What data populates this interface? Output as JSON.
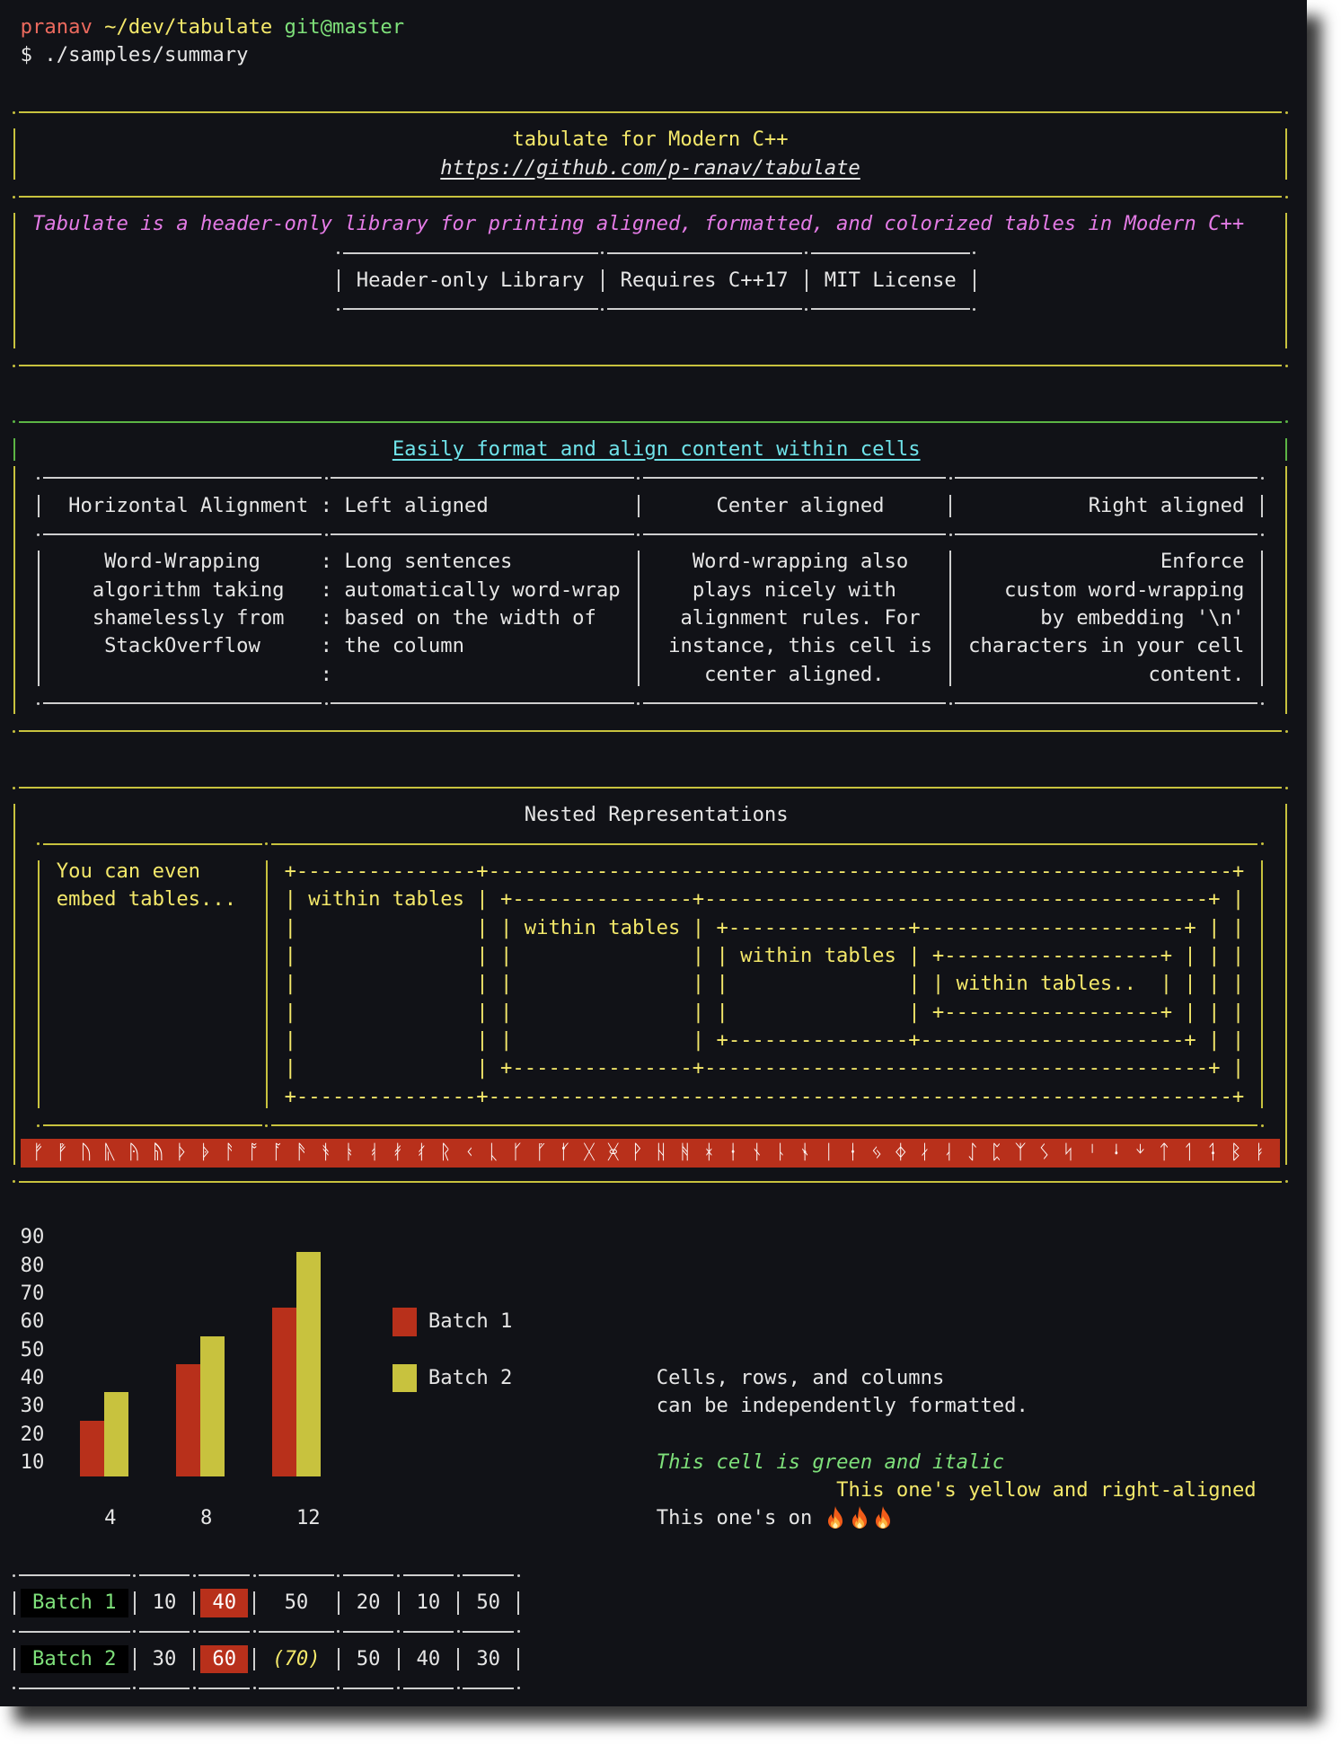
{
  "colors": {
    "background": "#111217",
    "text": "#e6e6e6",
    "border_white": "#cfcfcf",
    "border_yellow": "#c8c23e",
    "border_green": "#5cb545",
    "yellow_text": "#f4e86a",
    "green_text": "#7ee07a",
    "red": "#b8301b",
    "magenta": "#e47be6",
    "cyan": "#6fe3ea",
    "prompt_red": "#ec6a5e"
  },
  "prompt": {
    "user": "pranav",
    "path": " ~/dev/tabulate",
    "branch": " git@master",
    "command": "$ ./samples/summary"
  },
  "summary": {
    "title": "tabulate for Modern C++",
    "url": "https://github.com/p-ranav/tabulate",
    "description": "Tabulate is a header-only library for printing aligned, formatted, and colorized tables in Modern C++",
    "features": [
      "Header-only Library",
      "Requires C++17",
      "MIT License"
    ]
  },
  "format": {
    "title": "Easily format and align content within cells",
    "headers": {
      "a": "Horizontal Alignment",
      "sep": ":",
      "b": "Left aligned",
      "c": "Center aligned",
      "d": "Right aligned"
    },
    "col_a": [
      "Word-Wrapping",
      "algorithm taking",
      "shamelessly from",
      "StackOverflow"
    ],
    "col_b": [
      "Long sentences",
      "automatically word-wrap",
      "based on the width of",
      "the column"
    ],
    "col_c": [
      "Word-wrapping also",
      "plays nicely with",
      "alignment rules. For",
      "instance, this cell is",
      "center aligned."
    ],
    "col_d": [
      "Enforce",
      "custom word-wrapping",
      "by embedding '\\n'",
      "characters in your cell",
      "content."
    ]
  },
  "nested": {
    "title": "Nested Representations",
    "left": [
      "You can even",
      "embed tables..."
    ],
    "ascii": [
      "+---------------+--------------------------------------------------------------+",
      "| within tables | +---------------+------------------------------------------+ |",
      "|               | | within tables | +---------------+----------------------+ | |",
      "|               | |               | | within tables | +------------------+ | | |",
      "|               | |               | |               | | within tables..  | | | |",
      "|               | |               | |               | +------------------+ | | |",
      "|               | |               | +---------------+----------------------+ | |",
      "|               | +---------------+------------------------------------------+ |",
      "+---------------+--------------------------------------------------------------+"
    ]
  },
  "runic": "ᚠ ᚡ ᚢ ᚣ ᚤ ᚥ ᚦ ᚧ ᚨ ᚩ ᚪ ᚫ ᚬ ᚭ ᚮ ᚯ ᚰ ᚱ ᚲ ᚳ ᚴ ᚵ ᚶ ᚷ ᚸ ᚹ ᚺ ᚻ ᚼ ᚽ ᚾ ᚿ ᛀ ᛁ ᛂ ᛃ ᛄ ᛅ ᛆ ᛇ ᛈ ᛉ ᛊ ᛋ ᛌ ᛍ ᛎ ᛏ ᛐ ᛑ ᛒ ᛓ",
  "chart_data": {
    "type": "bar",
    "categories": [
      "4",
      "8",
      "12"
    ],
    "series": [
      {
        "name": "Batch 1",
        "values": [
          25,
          45,
          65
        ],
        "color": "#b8301b"
      },
      {
        "name": "Batch 2",
        "values": [
          35,
          55,
          85
        ],
        "color": "#c8c23e"
      }
    ],
    "yticks": [
      "90",
      "80",
      "70",
      "60",
      "50",
      "40",
      "30",
      "20",
      "10"
    ],
    "ylim": [
      5,
      90
    ],
    "legend": "right",
    "grid": false
  },
  "formatting": {
    "line1": "Cells, rows, and columns",
    "line2": "can be independently formatted.",
    "green_italic": "This cell is green and italic",
    "yellow_right": "This one's yellow and right-aligned",
    "on_fire": "This one's on",
    "emoji": "🔥🔥🔥",
    "emoji_icon": "fire-icon"
  },
  "batch_table": {
    "rows": [
      {
        "label": "Batch 1",
        "values": [
          "10",
          "40",
          "50",
          "20",
          "10",
          "50"
        ]
      },
      {
        "label": "Batch 2",
        "values": [
          "30",
          "60",
          "(70)",
          "50",
          "40",
          "30"
        ]
      }
    ]
  }
}
